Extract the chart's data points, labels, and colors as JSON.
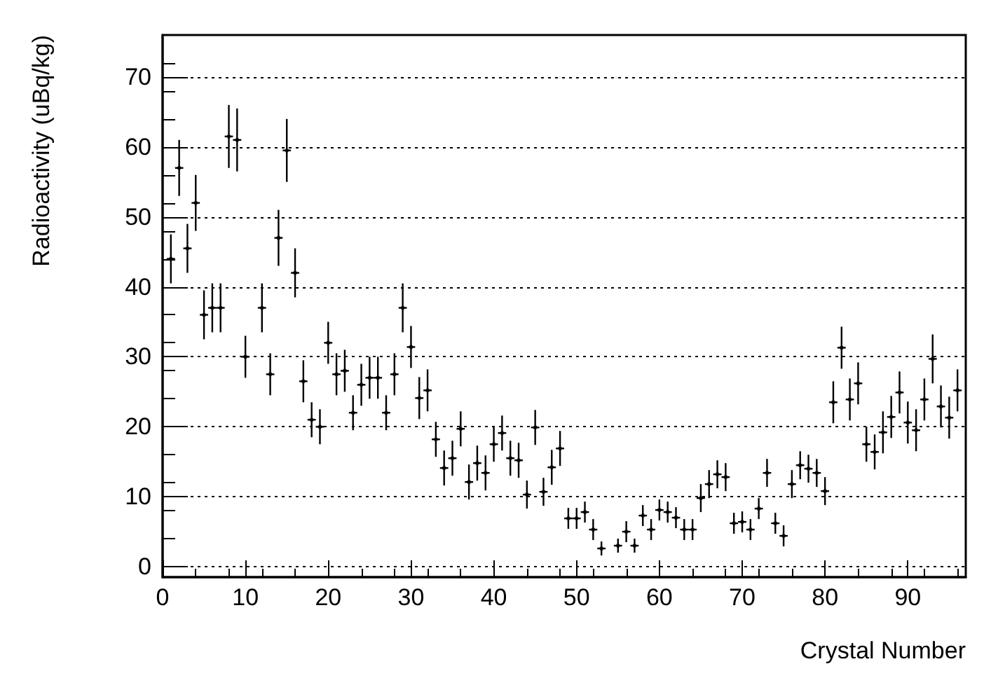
{
  "chart_data": {
    "type": "scatter",
    "xlabel": "Crystal Number",
    "ylabel": "Radioactivity (uBq/kg)",
    "x": [
      1,
      2,
      3,
      4,
      5,
      6,
      7,
      8,
      9,
      10,
      12,
      13,
      14,
      15,
      16,
      17,
      18,
      19,
      20,
      21,
      22,
      23,
      24,
      25,
      26,
      27,
      28,
      29,
      30,
      31,
      32,
      33,
      34,
      35,
      36,
      37,
      38,
      39,
      40,
      41,
      42,
      43,
      44,
      45,
      46,
      47,
      48,
      49,
      50,
      51,
      52,
      53,
      55,
      56,
      57,
      58,
      59,
      60,
      61,
      62,
      63,
      64,
      65,
      66,
      67,
      68,
      69,
      70,
      71,
      72,
      73,
      74,
      75,
      76,
      77,
      78,
      79,
      80,
      81,
      82,
      83,
      84,
      85,
      86,
      87,
      88,
      89,
      90,
      91,
      92,
      93,
      94,
      95,
      96
    ],
    "values": [
      44,
      57,
      45.5,
      52,
      36,
      37,
      37,
      61.5,
      61,
      30,
      37,
      27.5,
      47,
      59.5,
      42,
      26.5,
      21,
      20,
      32,
      27.5,
      28,
      22,
      26,
      27,
      27,
      22,
      27.5,
      37,
      31.4,
      24.1,
      25.2,
      18.2,
      14.1,
      15.5,
      19.7,
      12.1,
      14.8,
      13.4,
      17.5,
      19.1,
      15.5,
      15.2,
      10.3,
      19.9,
      10.7,
      14.2,
      16.9,
      6.9,
      6.9,
      7.8,
      5.3,
      2.6,
      3,
      5,
      3,
      7.3,
      5.3,
      8.1,
      7.8,
      7,
      5.3,
      5.3,
      9.8,
      11.8,
      13.2,
      12.8,
      6.2,
      6.4,
      5.3,
      8.3,
      13.4,
      6.2,
      4.4,
      11.8,
      14.5,
      14,
      13.4,
      10.8,
      23.5,
      31.3,
      23.9,
      26.2,
      17.5,
      16.4,
      19.2,
      21.4,
      24.9,
      20.6,
      19.5,
      23.9,
      29.7,
      22.9,
      21.3,
      25.2
    ],
    "errors": [
      3.5,
      4,
      3.5,
      4,
      3.5,
      3.5,
      3.5,
      4.5,
      4.5,
      3,
      3.5,
      3,
      4,
      4.5,
      3.5,
      3,
      2.5,
      2.5,
      3,
      3,
      3,
      2.5,
      3,
      3,
      3,
      2.5,
      3,
      3.5,
      3,
      3,
      3,
      2.5,
      2.5,
      2.5,
      2.5,
      2.5,
      2.5,
      2.5,
      2.5,
      2.5,
      2.5,
      2.5,
      2,
      2.5,
      2,
      2.5,
      2.5,
      1.5,
      1.5,
      1.5,
      1.5,
      1,
      1,
      1.5,
      1,
      1.5,
      1.5,
      1.5,
      1.5,
      1.5,
      1.5,
      1.5,
      2,
      2,
      2,
      2,
      1.5,
      1.5,
      1.5,
      1.5,
      2,
      1.5,
      1.5,
      2,
      2,
      2,
      2,
      2,
      3,
      3,
      3,
      3,
      2.5,
      2.5,
      3,
      3,
      3,
      3,
      3,
      3,
      3.5,
      3,
      3,
      3
    ],
    "xerrors": [
      0.5,
      0.5,
      0.5,
      0.5,
      0.5,
      0.5,
      0.5,
      0.5,
      0.5,
      0.5,
      0.5,
      0.5,
      0.5,
      0.5,
      0.5,
      0.5,
      0.5,
      0.5,
      0.5,
      0.5,
      0.5,
      0.5,
      0.5,
      0.5,
      0.5,
      0.5,
      0.5,
      0.5,
      0.5,
      0.5,
      0.5,
      0.5,
      0.5,
      0.5,
      0.5,
      0.5,
      0.5,
      0.5,
      0.5,
      0.5,
      0.5,
      0.5,
      0.5,
      0.5,
      0.5,
      0.5,
      0.5,
      0.5,
      0.5,
      0.5,
      0.5,
      0.5,
      0.5,
      0.5,
      0.5,
      0.5,
      0.5,
      0.5,
      0.5,
      0.5,
      0.5,
      0.5,
      0.5,
      0.5,
      0.5,
      0.5,
      0.5,
      0.5,
      0.5,
      0.5,
      0.5,
      0.5,
      0.5,
      0.5,
      0.5,
      0.5,
      0.5,
      0.5,
      0.5,
      0.5,
      0.5,
      0.5,
      0.5,
      0.5,
      0.5,
      0.5,
      0.5,
      0.5,
      0.5,
      0.5,
      0.5,
      0.5,
      0.5,
      0.5
    ],
    "color": "#000000",
    "xlim": [
      0,
      97
    ],
    "xticks": [
      0,
      10,
      20,
      30,
      40,
      50,
      60,
      70,
      80,
      90
    ],
    "ylim": [
      -1.5,
      76
    ],
    "yticks": [
      0,
      10,
      20,
      30,
      40,
      50,
      60,
      70
    ],
    "grid": "y"
  }
}
